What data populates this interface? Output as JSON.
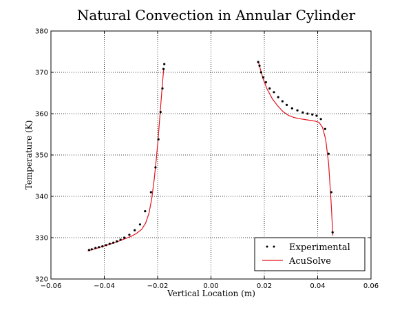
{
  "chart_data": {
    "type": "scatter",
    "title": "Natural Convection in Annular Cylinder",
    "xlabel": "Vertical Location (m)",
    "ylabel": "Temperature (K)",
    "xlim": [
      -0.06,
      0.06
    ],
    "ylim": [
      320,
      380
    ],
    "xticks": [
      -0.06,
      -0.04,
      -0.02,
      0.0,
      0.02,
      0.04,
      0.06
    ],
    "xtick_labels": [
      "−0.06",
      "−0.04",
      "−0.02",
      "0.00",
      "0.02",
      "0.04",
      "0.06"
    ],
    "yticks": [
      320,
      330,
      340,
      350,
      360,
      370,
      380
    ],
    "ytick_labels": [
      "320",
      "330",
      "340",
      "350",
      "360",
      "370",
      "380"
    ],
    "grid": true,
    "legend_position": "lower-right",
    "series": [
      {
        "name": "Experimental",
        "kind": "markers",
        "color": "#000000",
        "x": [
          -0.0457,
          -0.0447,
          -0.0433,
          -0.042,
          -0.0407,
          -0.0393,
          -0.038,
          -0.0366,
          -0.0353,
          -0.0339,
          -0.0325,
          -0.0306,
          -0.0286,
          -0.0266,
          -0.0247,
          -0.0225,
          -0.0208,
          -0.0197,
          -0.0189,
          -0.0182,
          -0.0178,
          -0.0175,
          0.0177,
          0.0182,
          0.0188,
          0.0196,
          0.0206,
          0.022,
          0.0236,
          0.0252,
          0.0268,
          0.0284,
          0.0304,
          0.0324,
          0.0344,
          0.0362,
          0.038,
          0.0396,
          0.0412,
          0.0428,
          0.0441,
          0.0451,
          0.0456
        ],
        "y": [
          327.0,
          327.2,
          327.5,
          327.7,
          327.9,
          328.2,
          328.5,
          328.8,
          329.1,
          329.5,
          330.0,
          330.7,
          331.8,
          333.2,
          336.4,
          341.0,
          347.0,
          353.8,
          360.4,
          366.1,
          370.8,
          372.0,
          372.5,
          371.6,
          370.0,
          368.8,
          367.6,
          366.1,
          365.2,
          364.0,
          363.0,
          362.1,
          361.3,
          360.8,
          360.3,
          360.0,
          359.8,
          359.5,
          358.7,
          356.3,
          350.3,
          341.0,
          331.3
        ]
      },
      {
        "name": "AcuSolve",
        "kind": "line",
        "color": "#e0141e",
        "x": [
          -0.0462,
          -0.044,
          -0.042,
          -0.04,
          -0.038,
          -0.036,
          -0.034,
          -0.032,
          -0.03,
          -0.028,
          -0.026,
          -0.0245,
          -0.0232,
          -0.0222,
          -0.0213,
          -0.0205,
          -0.0198,
          -0.0192,
          -0.0186,
          -0.0181,
          -0.0178,
          -0.0176
        ],
        "y": [
          326.8,
          327.2,
          327.6,
          328.0,
          328.4,
          328.8,
          329.3,
          329.8,
          330.3,
          331.0,
          332.0,
          333.5,
          336.0,
          339.5,
          344.0,
          349.0,
          354.0,
          359.0,
          364.0,
          368.0,
          370.3,
          371.0
        ],
        "x2": [
          0.0178,
          0.0185,
          0.0195,
          0.021,
          0.023,
          0.025,
          0.027,
          0.029,
          0.031,
          0.033,
          0.035,
          0.037,
          0.039,
          0.0405,
          0.0418,
          0.043,
          0.0441,
          0.045,
          0.0457
        ],
        "y2": [
          372.5,
          370.8,
          368.5,
          366.0,
          363.6,
          361.9,
          360.5,
          359.6,
          359.1,
          358.8,
          358.6,
          358.4,
          358.2,
          357.9,
          356.7,
          353.8,
          348.0,
          339.0,
          330.5
        ]
      }
    ]
  }
}
